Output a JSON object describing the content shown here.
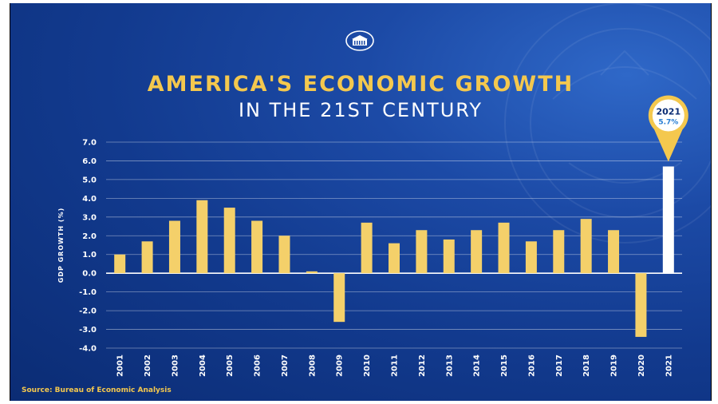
{
  "colors": {
    "bar": "#f4d06a",
    "highlight_bar": "#ffffff",
    "accent": "#f4c84e",
    "grid": "#ffffff"
  },
  "logo_icon": "white-house-icon",
  "chart_data": {
    "type": "bar",
    "title": "AMERICA'S ECONOMIC GROWTH",
    "subtitle": "IN THE 21ST CENTURY",
    "ylabel": "GDP GROWTH (%)",
    "xlabel": "",
    "ylim": [
      -4.0,
      7.0
    ],
    "yticks": [
      "7.0",
      "6.0",
      "5.0",
      "4.0",
      "3.0",
      "2.0",
      "1.0",
      "0.0",
      "-1.0",
      "-2.0",
      "-3.0",
      "-4.0"
    ],
    "categories": [
      "2001",
      "2002",
      "2003",
      "2004",
      "2005",
      "2006",
      "2007",
      "2008",
      "2009",
      "2010",
      "2011",
      "2012",
      "2013",
      "2014",
      "2015",
      "2016",
      "2017",
      "2018",
      "2019",
      "2020",
      "2021"
    ],
    "values": [
      1.0,
      1.7,
      2.8,
      3.9,
      3.5,
      2.8,
      2.0,
      0.1,
      -2.6,
      2.7,
      1.6,
      2.3,
      1.8,
      2.3,
      2.7,
      1.7,
      2.3,
      2.9,
      2.3,
      -3.4,
      5.7
    ],
    "grid": true,
    "highlight": {
      "category": "2021",
      "label_year": "2021",
      "label_value": "5.7%"
    },
    "source": "Source: Bureau of Economic Analysis"
  }
}
